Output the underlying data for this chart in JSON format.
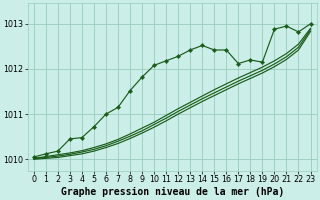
{
  "background_color": "#cceee8",
  "grid_color": "#99ccbb",
  "line_color": "#1a5c1a",
  "title": "Graphe pression niveau de la mer (hPa)",
  "xlim": [
    -0.5,
    23.5
  ],
  "ylim": [
    1009.75,
    1013.45
  ],
  "yticks": [
    1010,
    1011,
    1012,
    1013
  ],
  "xticks": [
    0,
    1,
    2,
    3,
    4,
    5,
    6,
    7,
    8,
    9,
    10,
    11,
    12,
    13,
    14,
    15,
    16,
    17,
    18,
    19,
    20,
    21,
    22,
    23
  ],
  "main_x": [
    0,
    1,
    2,
    3,
    4,
    5,
    6,
    7,
    8,
    9,
    10,
    11,
    12,
    13,
    14,
    15,
    16,
    17,
    18,
    19,
    20,
    21,
    22,
    23
  ],
  "main_y": [
    1010.05,
    1010.12,
    1010.18,
    1010.45,
    1010.48,
    1010.72,
    1011.0,
    1011.15,
    1011.52,
    1011.82,
    1012.08,
    1012.18,
    1012.28,
    1012.42,
    1012.52,
    1012.42,
    1012.42,
    1012.12,
    1012.2,
    1012.15,
    1012.88,
    1012.95,
    1012.82,
    1013.0
  ],
  "smooth1_y": [
    1010.02,
    1010.06,
    1010.1,
    1010.14,
    1010.19,
    1010.26,
    1010.34,
    1010.44,
    1010.56,
    1010.69,
    1010.82,
    1010.97,
    1011.12,
    1011.26,
    1011.4,
    1011.54,
    1011.67,
    1011.8,
    1011.92,
    1012.04,
    1012.18,
    1012.34,
    1012.55,
    1012.9
  ],
  "smooth2_y": [
    1010.01,
    1010.04,
    1010.07,
    1010.11,
    1010.16,
    1010.22,
    1010.3,
    1010.4,
    1010.51,
    1010.63,
    1010.77,
    1010.91,
    1011.06,
    1011.2,
    1011.34,
    1011.47,
    1011.6,
    1011.73,
    1011.85,
    1011.97,
    1012.11,
    1012.27,
    1012.48,
    1012.87
  ],
  "smooth3_y": [
    1010.0,
    1010.02,
    1010.04,
    1010.08,
    1010.12,
    1010.18,
    1010.26,
    1010.35,
    1010.46,
    1010.58,
    1010.71,
    1010.85,
    1011.0,
    1011.14,
    1011.28,
    1011.41,
    1011.54,
    1011.67,
    1011.79,
    1011.91,
    1012.05,
    1012.21,
    1012.42,
    1012.83
  ],
  "title_fontsize": 7.0,
  "tick_fontsize": 5.8
}
